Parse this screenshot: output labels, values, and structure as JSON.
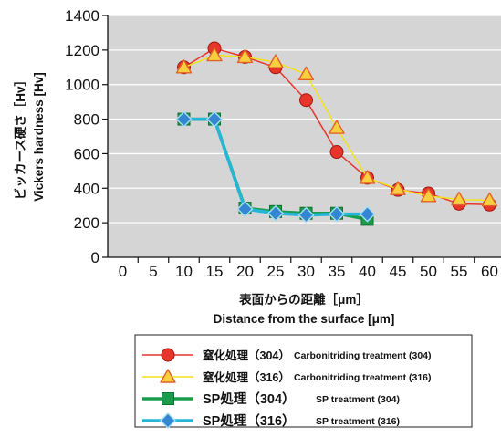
{
  "chart_data": {
    "type": "line",
    "xlabel": "表面からの距離［μm］",
    "xlabel_en": "Distance from the surface [μm]",
    "ylabel": "ビッカース硬さ［Hv］",
    "ylabel_en": "Vickers hardness [Hv]",
    "xticks": [
      0,
      5,
      10,
      15,
      20,
      25,
      30,
      35,
      40,
      45,
      50,
      55,
      60
    ],
    "xlim": [
      0,
      60
    ],
    "yticks": [
      0,
      200,
      400,
      600,
      800,
      1000,
      1200,
      1400
    ],
    "ylim": [
      0,
      1400
    ],
    "grid": "horizontal",
    "legend": "bottom",
    "plot_background": "#d5d5d5",
    "series": [
      {
        "name": "窒化処理（304）",
        "name_en": "Carbonitriding treatment (304)",
        "color": "#e8352b",
        "marker": "circle",
        "x": [
          10,
          15,
          20,
          25,
          30,
          35,
          40,
          45,
          50,
          55,
          60
        ],
        "y": [
          1100,
          1210,
          1160,
          1100,
          910,
          610,
          460,
          390,
          370,
          310,
          305
        ]
      },
      {
        "name": "窒化処理（316）",
        "name_en": "Carbonitriding treatment (316)",
        "color": "#f2e21a",
        "marker_color": "#f7cf3f",
        "marker": "triangle",
        "x": [
          10,
          15,
          20,
          25,
          30,
          35,
          40,
          45,
          50,
          55,
          60
        ],
        "y": [
          1100,
          1170,
          1160,
          1130,
          1060,
          750,
          460,
          395,
          355,
          335,
          330
        ]
      },
      {
        "name": "SP処理（304）",
        "name_en": "SP treatment (304)",
        "color": "#1a9c4c",
        "marker": "square",
        "x": [
          10,
          15,
          20,
          25,
          30,
          35,
          40
        ],
        "y": [
          800,
          800,
          285,
          265,
          255,
          255,
          220
        ]
      },
      {
        "name": "SP処理（316）",
        "name_en": "SP treatment (316)",
        "color": "#25b6d6",
        "marker_color": "#3486d0",
        "marker": "diamond",
        "x": [
          10,
          15,
          20,
          25,
          30,
          35,
          40
        ],
        "y": [
          800,
          800,
          280,
          255,
          245,
          250,
          250
        ]
      }
    ]
  }
}
